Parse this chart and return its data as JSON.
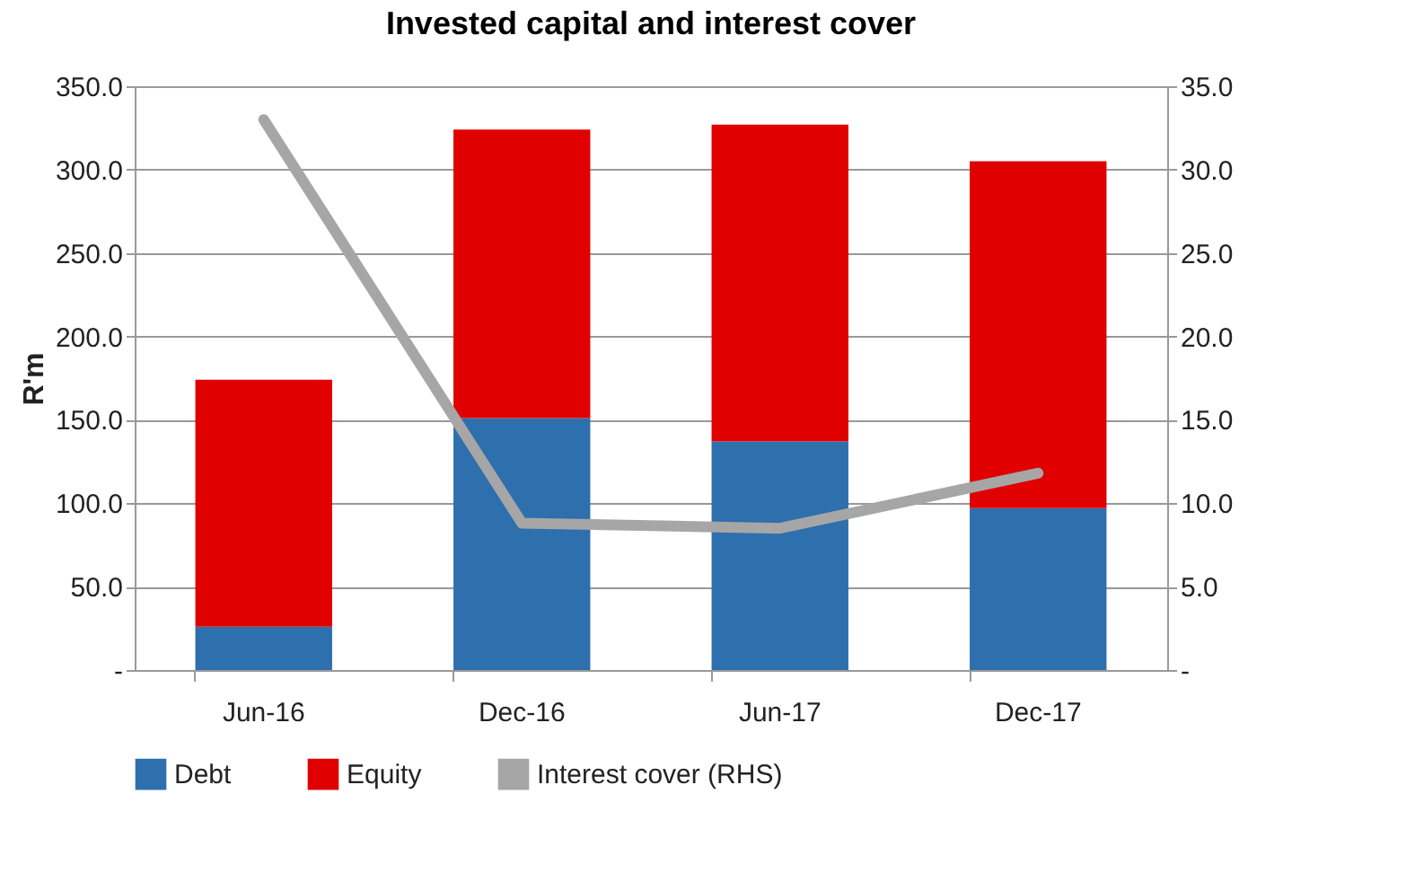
{
  "chart_data": {
    "type": "bar",
    "title": "Invested capital and interest cover",
    "ylabel": "R'm",
    "categories": [
      "Jun-16",
      "Dec-16",
      "Jun-17",
      "Dec-17"
    ],
    "stacked": true,
    "series": [
      {
        "name": "Debt",
        "color": "#2e6fad",
        "values": [
          26,
          151,
          137,
          97
        ]
      },
      {
        "name": "Equity",
        "color": "#e00000",
        "values": [
          148,
          173,
          190,
          208
        ]
      },
      {
        "name": "Interest cover (RHS)",
        "type": "line",
        "axis": "y2",
        "color": "#a6a6a6",
        "values": [
          33,
          8.8,
          8.5,
          11.8
        ]
      }
    ],
    "ylim": [
      0,
      350
    ],
    "yticks": [
      {
        "value": 0,
        "label": "-"
      },
      {
        "value": 50,
        "label": "50.0"
      },
      {
        "value": 100,
        "label": "100.0"
      },
      {
        "value": 150,
        "label": "150.0"
      },
      {
        "value": 200,
        "label": "200.0"
      },
      {
        "value": 250,
        "label": "250.0"
      },
      {
        "value": 300,
        "label": "300.0"
      },
      {
        "value": 350,
        "label": "350.0"
      }
    ],
    "y2lim": [
      0,
      35
    ],
    "y2ticks": [
      {
        "value": 0,
        "label": "-"
      },
      {
        "value": 5,
        "label": "5.0"
      },
      {
        "value": 10,
        "label": "10.0"
      },
      {
        "value": 15,
        "label": "15.0"
      },
      {
        "value": 20,
        "label": "20.0"
      },
      {
        "value": 25,
        "label": "25.0"
      },
      {
        "value": 30,
        "label": "30.0"
      },
      {
        "value": 35,
        "label": "35.0"
      }
    ],
    "grid": "y",
    "legend": "bottom"
  }
}
